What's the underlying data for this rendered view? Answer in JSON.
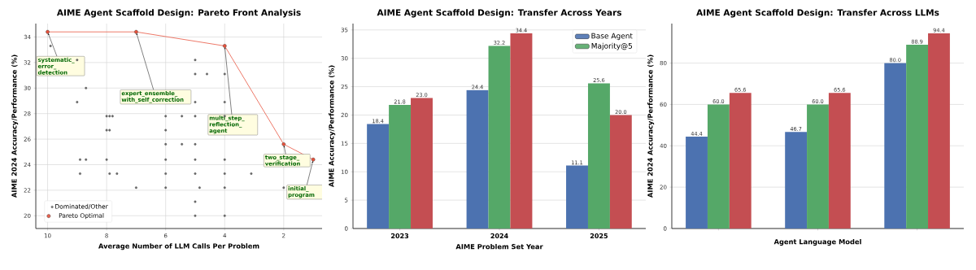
{
  "chart_data": [
    {
      "type": "scatter",
      "title": "AIME Agent Scaffold Design: Pareto Front Analysis",
      "xlabel": "Average Number of LLM Calls Per Problem",
      "ylabel": "AIME 2024 Accuracy/Performance (%)",
      "xlim": [
        10.4,
        0.7
      ],
      "ylim": [
        19,
        35.05
      ],
      "xticks": [
        10,
        8,
        6,
        4,
        2
      ],
      "yticks": [
        20,
        22,
        24,
        26,
        28,
        30,
        32,
        34
      ],
      "grid": true,
      "legend": "bottom left",
      "marker": "circle",
      "series": [
        {
          "name": "Dominated/Other",
          "type": "scatter",
          "color": "#666666",
          "x": [
            9.9,
            9,
            8.7,
            9,
            8,
            7.9,
            7.8,
            6,
            5.45,
            5,
            4,
            5,
            5,
            4.6,
            4,
            5,
            4,
            8,
            7.9,
            6,
            6,
            5.45,
            5,
            8.9,
            8.7,
            8,
            6,
            5,
            4,
            8.9,
            7.9,
            7.65,
            6,
            5,
            4,
            3.1,
            7,
            6,
            4.85,
            4,
            2,
            5,
            5,
            4
          ],
          "values": [
            33.3,
            32.2,
            30.0,
            28.9,
            27.8,
            27.8,
            27.8,
            27.8,
            27.8,
            27.8,
            27.8,
            32.2,
            31.1,
            31.1,
            31.1,
            28.9,
            28.9,
            26.7,
            26.7,
            26.7,
            25.6,
            25.6,
            25.6,
            24.4,
            24.4,
            24.4,
            24.4,
            24.4,
            24.4,
            23.3,
            23.3,
            23.3,
            23.3,
            23.3,
            23.3,
            23.3,
            22.2,
            22.2,
            22.2,
            22.2,
            22.2,
            21.1,
            20.0,
            20.0
          ]
        },
        {
          "name": "Pareto Optimal",
          "type": "line",
          "color": "#e8503a",
          "x": [
            10,
            7,
            4,
            2,
            1
          ],
          "values": [
            34.4,
            34.4,
            33.3,
            25.6,
            24.4
          ]
        }
      ],
      "annotations": [
        {
          "text": "systematic_error_detection",
          "x": 10,
          "y": 34.4
        },
        {
          "text": "expert_ensemble_with_self_correction",
          "x": 7,
          "y": 34.4
        },
        {
          "text": "multi_step_reflection_agent",
          "x": 4,
          "y": 33.3
        },
        {
          "text": "two_stage_verification",
          "x": 2,
          "y": 25.6
        },
        {
          "text": "initial_program",
          "x": 1,
          "y": 24.4
        }
      ]
    },
    {
      "type": "bar",
      "title": "AIME Agent Scaffold Design: Transfer Across Years",
      "xlabel": "AIME Problem Set Year",
      "ylabel": "AIME Accuracy/Performance (%)",
      "categories": [
        "2023",
        "2024",
        "2025"
      ],
      "ylim": [
        0,
        36.12
      ],
      "yticks": [
        0,
        5,
        10,
        15,
        20,
        25,
        30,
        35
      ],
      "grid": "y",
      "legend": "top right",
      "series": [
        {
          "name": "Base Agent",
          "color": "#4c72b0",
          "values": [
            18.4,
            24.4,
            11.1
          ],
          "value_labels": [
            "18.4",
            "24.4",
            "11.1"
          ]
        },
        {
          "name": "Majority@5",
          "color": "#55a868",
          "values": [
            21.8,
            32.2,
            25.6
          ],
          "value_labels": [
            "21.8",
            "32.2",
            "25.6"
          ]
        },
        {
          "color": "#c44e52",
          "values": [
            23.0,
            34.4,
            20.0
          ],
          "value_labels": [
            "23.0",
            "34.4",
            "20.0"
          ]
        }
      ]
    },
    {
      "type": "bar",
      "title": "AIME Agent Scaffold Design: Transfer Across LLMs",
      "xlabel": "Agent Language Model",
      "ylabel": "AIME 2024 Accuracy/Performance (%)",
      "categories": [
        null,
        null,
        null
      ],
      "ylim": [
        0,
        99.1
      ],
      "yticks": [
        0,
        20,
        40,
        60,
        80
      ],
      "grid": "y",
      "series": [
        {
          "color": "#4c72b0",
          "values": [
            44.4,
            46.7,
            80.0
          ],
          "value_labels": [
            "44.4",
            "46.7",
            "80.0"
          ]
        },
        {
          "color": "#55a868",
          "values": [
            60.0,
            60.0,
            88.9
          ],
          "value_labels": [
            "60.0",
            "60.0",
            "88.9"
          ]
        },
        {
          "color": "#c44e52",
          "values": [
            65.6,
            65.6,
            94.4
          ],
          "value_labels": [
            "65.6",
            "65.6",
            "94.4"
          ]
        }
      ]
    }
  ]
}
